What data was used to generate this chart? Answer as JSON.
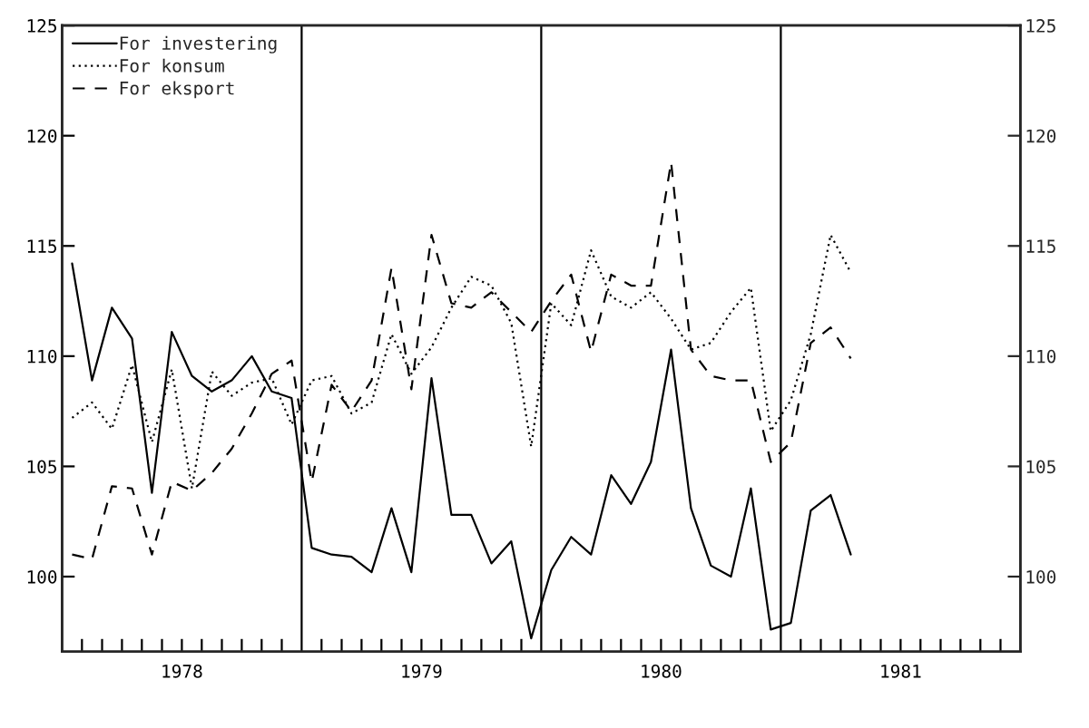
{
  "chart_data": {
    "type": "line",
    "x": [
      1978.042,
      1978.125,
      1978.208,
      1978.292,
      1978.375,
      1978.458,
      1978.542,
      1978.625,
      1978.708,
      1978.792,
      1978.875,
      1978.958,
      1979.042,
      1979.125,
      1979.208,
      1979.292,
      1979.375,
      1979.458,
      1979.542,
      1979.625,
      1979.708,
      1979.792,
      1979.875,
      1979.958,
      1980.042,
      1980.125,
      1980.208,
      1980.292,
      1980.375,
      1980.458,
      1980.542,
      1980.625,
      1980.708,
      1980.792,
      1980.875,
      1980.958,
      1981.042,
      1981.125,
      1981.208,
      1981.292
    ],
    "series": [
      {
        "name": "For investering",
        "color": "#000000",
        "line_style": "solid",
        "values": [
          114.2,
          108.9,
          112.2,
          110.8,
          103.8,
          111.1,
          109.1,
          108.4,
          108.9,
          110.0,
          108.4,
          108.1,
          101.3,
          101.0,
          100.9,
          100.2,
          103.1,
          100.2,
          109.0,
          102.8,
          102.8,
          100.6,
          101.6,
          97.2,
          100.3,
          101.8,
          101.0,
          104.6,
          103.3,
          105.2,
          110.3,
          103.1,
          100.5,
          100.0,
          104.0,
          97.6,
          97.9,
          103.0,
          103.7,
          101.0
        ]
      },
      {
        "name": "For konsum",
        "color": "#000000",
        "line_style": "dotted",
        "values": [
          107.2,
          107.9,
          106.7,
          109.6,
          106.1,
          109.4,
          104.0,
          109.3,
          108.2,
          108.8,
          109.0,
          106.9,
          108.9,
          109.1,
          107.4,
          107.9,
          111.0,
          109.2,
          110.4,
          112.2,
          113.6,
          113.2,
          111.5,
          105.9,
          112.4,
          111.4,
          114.8,
          112.7,
          112.2,
          112.9,
          111.7,
          110.3,
          110.6,
          112.0,
          113.1,
          106.6,
          108.0,
          111.0,
          115.5,
          113.8
        ]
      },
      {
        "name": "For eksport",
        "color": "#000000",
        "line_style": "dashed",
        "values": [
          101.0,
          100.8,
          104.1,
          104.0,
          101.0,
          104.3,
          103.9,
          104.7,
          105.8,
          107.4,
          109.2,
          109.8,
          104.3,
          108.7,
          107.5,
          108.9,
          114.0,
          108.5,
          115.5,
          112.4,
          112.2,
          112.9,
          112.0,
          111.1,
          112.5,
          113.7,
          110.2,
          113.7,
          113.2,
          113.2,
          118.8,
          110.3,
          109.1,
          108.9,
          108.9,
          105.2,
          106.1,
          110.6,
          111.3,
          109.9
        ]
      }
    ],
    "xlim": [
      1978,
      1982
    ],
    "xticks": [
      {
        "value": 1978.083,
        "label": null
      },
      {
        "value": 1978.167,
        "label": null
      },
      {
        "value": 1978.25,
        "label": null
      },
      {
        "value": 1978.333,
        "label": null
      },
      {
        "value": 1978.417,
        "label": null
      },
      {
        "value": 1978.5,
        "label": "1978"
      },
      {
        "value": 1978.583,
        "label": null
      },
      {
        "value": 1978.667,
        "label": null
      },
      {
        "value": 1978.75,
        "label": null
      },
      {
        "value": 1978.833,
        "label": null
      },
      {
        "value": 1978.917,
        "label": null
      },
      {
        "value": 1979.083,
        "label": null
      },
      {
        "value": 1979.167,
        "label": null
      },
      {
        "value": 1979.25,
        "label": null
      },
      {
        "value": 1979.333,
        "label": null
      },
      {
        "value": 1979.417,
        "label": null
      },
      {
        "value": 1979.5,
        "label": "1979"
      },
      {
        "value": 1979.583,
        "label": null
      },
      {
        "value": 1979.667,
        "label": null
      },
      {
        "value": 1979.75,
        "label": null
      },
      {
        "value": 1979.833,
        "label": null
      },
      {
        "value": 1979.917,
        "label": null
      },
      {
        "value": 1980.083,
        "label": null
      },
      {
        "value": 1980.167,
        "label": null
      },
      {
        "value": 1980.25,
        "label": null
      },
      {
        "value": 1980.333,
        "label": null
      },
      {
        "value": 1980.417,
        "label": null
      },
      {
        "value": 1980.5,
        "label": "1980"
      },
      {
        "value": 1980.583,
        "label": null
      },
      {
        "value": 1980.667,
        "label": null
      },
      {
        "value": 1980.75,
        "label": null
      },
      {
        "value": 1980.833,
        "label": null
      },
      {
        "value": 1980.917,
        "label": null
      },
      {
        "value": 1981.083,
        "label": null
      },
      {
        "value": 1981.167,
        "label": null
      },
      {
        "value": 1981.25,
        "label": null
      },
      {
        "value": 1981.333,
        "label": null
      },
      {
        "value": 1981.417,
        "label": null
      },
      {
        "value": 1981.5,
        "label": "1981"
      },
      {
        "value": 1981.583,
        "label": null
      },
      {
        "value": 1981.667,
        "label": null
      },
      {
        "value": 1981.75,
        "label": null
      },
      {
        "value": 1981.833,
        "label": null
      },
      {
        "value": 1981.917,
        "label": null
      }
    ],
    "ylim": [
      96.6,
      125
    ],
    "yticks": [
      100,
      105,
      110,
      115,
      120,
      125
    ],
    "y2lim": [
      96.6,
      125
    ],
    "y2ticks": [
      100,
      105,
      110,
      115,
      120,
      125
    ],
    "ref_lines": [
      {
        "axis": "x",
        "value": 1979,
        "color": "#000000"
      },
      {
        "axis": "x",
        "value": 1980,
        "color": "#000000"
      },
      {
        "axis": "x",
        "value": 1981,
        "color": "#000000"
      }
    ],
    "legend": "top left",
    "grid": false,
    "marker": "none"
  }
}
